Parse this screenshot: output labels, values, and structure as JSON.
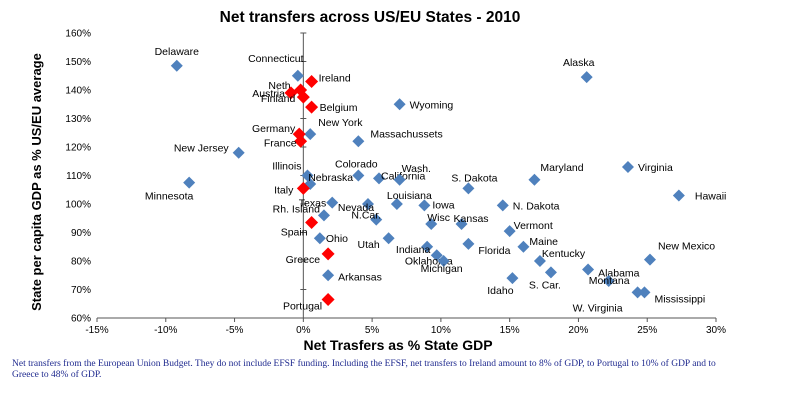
{
  "chart_data": {
    "type": "scatter",
    "title": "Net transfers across US/EU States - 2010",
    "xlabel": "Net Trasfers as % State GDP",
    "ylabel": "State per capita GDP as % US/EU average",
    "xlim": [
      -15,
      30
    ],
    "ylim": [
      60,
      160
    ],
    "x_ticks": [
      "-15%",
      "-10%",
      "-5%",
      "0%",
      "5%",
      "10%",
      "15%",
      "20%",
      "25%",
      "30%"
    ],
    "y_ticks": [
      "60%",
      "70%",
      "80%",
      "90%",
      "100%",
      "110%",
      "120%",
      "130%",
      "140%",
      "150%",
      "160%"
    ],
    "grid": false,
    "colors": {
      "us": "#4f81bd",
      "eu": "#ff0000",
      "axis": "#555555",
      "text": "#000000"
    },
    "series": [
      {
        "key": "us",
        "marker": "diamond",
        "points": [
          {
            "label": "Delaware",
            "x": -9.2,
            "y": 148.5
          },
          {
            "label": "Connecticut",
            "x": -0.4,
            "y": 145
          },
          {
            "label": "Alaska",
            "x": 20.6,
            "y": 144.5
          },
          {
            "label": "Wyoming",
            "x": 7.0,
            "y": 135
          },
          {
            "label": "New York",
            "x": 0.5,
            "y": 124.5
          },
          {
            "label": "Massachussets",
            "x": 4.0,
            "y": 122
          },
          {
            "label": "New Jersey",
            "x": -4.7,
            "y": 118
          },
          {
            "label": "Illinois",
            "x": 0.3,
            "y": 110
          },
          {
            "label": "Colorado",
            "x": 4.0,
            "y": 110
          },
          {
            "label": "Nebraska",
            "x": 0.5,
            "y": 107
          },
          {
            "label": "California",
            "x": 5.5,
            "y": 109
          },
          {
            "label": "Wash.",
            "x": 7.0,
            "y": 108.5
          },
          {
            "label": "S. Dakota",
            "x": 12.0,
            "y": 105.5
          },
          {
            "label": "Maryland",
            "x": 16.8,
            "y": 108.5
          },
          {
            "label": "Virginia",
            "x": 23.6,
            "y": 113
          },
          {
            "label": "Minnesota",
            "x": -8.3,
            "y": 107.5
          },
          {
            "label": "Hawaii",
            "x": 27.3,
            "y": 103
          },
          {
            "label": "Texas",
            "x": 2.1,
            "y": 100.5
          },
          {
            "label": "Nevada",
            "x": 4.7,
            "y": 100
          },
          {
            "label": "Louisiana",
            "x": 6.8,
            "y": 100
          },
          {
            "label": "Iowa",
            "x": 8.8,
            "y": 99.5
          },
          {
            "label": "N. Dakota",
            "x": 14.5,
            "y": 99.5
          },
          {
            "label": "Rh. Island",
            "x": 1.5,
            "y": 96
          },
          {
            "label": "N.Car.",
            "x": 5.3,
            "y": 94.5
          },
          {
            "label": "Wisc",
            "x": 9.3,
            "y": 93
          },
          {
            "label": "Kansas",
            "x": 11.5,
            "y": 93
          },
          {
            "label": "Vermont",
            "x": 15.0,
            "y": 90.5
          },
          {
            "label": "Ohio",
            "x": 1.2,
            "y": 88
          },
          {
            "label": "Utah",
            "x": 6.2,
            "y": 88
          },
          {
            "label": "Indiana",
            "x": 9.0,
            "y": 85
          },
          {
            "label": "Florida",
            "x": 12.0,
            "y": 86
          },
          {
            "label": "Maine",
            "x": 16.0,
            "y": 85
          },
          {
            "label": "Oklahoma",
            "x": 9.7,
            "y": 82
          },
          {
            "label": "Michigan",
            "x": 10.2,
            "y": 80
          },
          {
            "label": "Kentucky",
            "x": 17.2,
            "y": 80
          },
          {
            "label": "New Mexico",
            "x": 25.2,
            "y": 80.5
          },
          {
            "label": "Alabama",
            "x": 20.7,
            "y": 77
          },
          {
            "label": "Arkansas",
            "x": 1.8,
            "y": 75
          },
          {
            "label": "Idaho",
            "x": 15.2,
            "y": 74
          },
          {
            "label": "S. Car.",
            "x": 18.0,
            "y": 76
          },
          {
            "label": "Montana",
            "x": 22.2,
            "y": 73
          },
          {
            "label": "Mississippi",
            "x": 24.8,
            "y": 69
          },
          {
            "label": "W. Virginia",
            "x": 24.3,
            "y": 69
          }
        ]
      },
      {
        "key": "eu",
        "marker": "diamond",
        "points": [
          {
            "label": "Ireland",
            "x": 0.6,
            "y": 143
          },
          {
            "label": "Neth",
            "x": -0.2,
            "y": 140
          },
          {
            "label": "Austria",
            "x": -0.9,
            "y": 139
          },
          {
            "label": "Finland",
            "x": 0.0,
            "y": 137.5
          },
          {
            "label": "Belgium",
            "x": 0.6,
            "y": 134
          },
          {
            "label": "Germany",
            "x": -0.3,
            "y": 124.5
          },
          {
            "label": "France",
            "x": -0.2,
            "y": 122
          },
          {
            "label": "Italy",
            "x": 0.0,
            "y": 105.5
          },
          {
            "label": "Spain",
            "x": 0.6,
            "y": 93.5
          },
          {
            "label": "Greece",
            "x": 1.8,
            "y": 82.5
          },
          {
            "label": "Portugal",
            "x": 1.8,
            "y": 66.5
          }
        ]
      }
    ]
  },
  "footnote": "Net transfers from the European Union Budget. They do not include EFSF funding. Including the EFSF, net transfers to Ireland amount to 8% of GDP, to Portugal to 10% of GDP and to Greece to 48% of GDP."
}
